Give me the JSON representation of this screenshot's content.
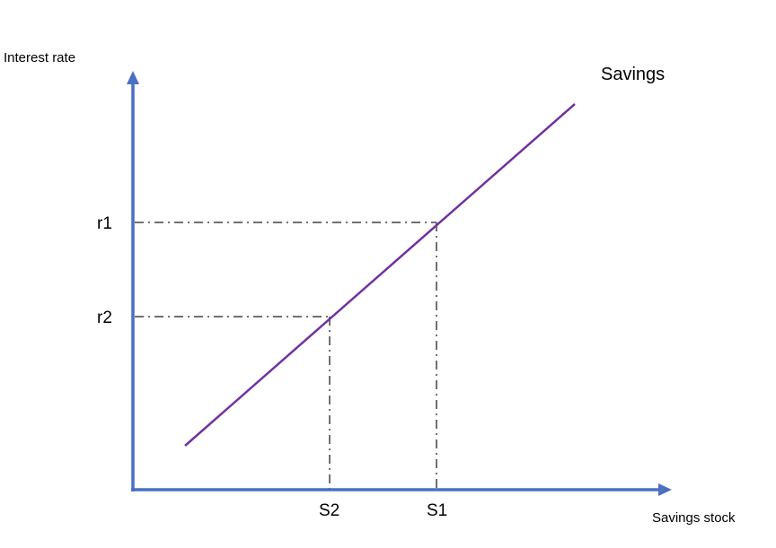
{
  "diagram": {
    "y_axis_label": "Interest rate",
    "x_axis_label": "Savings stock",
    "curve_label": "Savings",
    "y_ticks": [
      "r1",
      "r2"
    ],
    "x_ticks": [
      "S2",
      "S1"
    ],
    "colors": {
      "axis": "#4a6fc4",
      "curve": "#7030a0",
      "guide": "#707070",
      "text": "#000000"
    }
  }
}
